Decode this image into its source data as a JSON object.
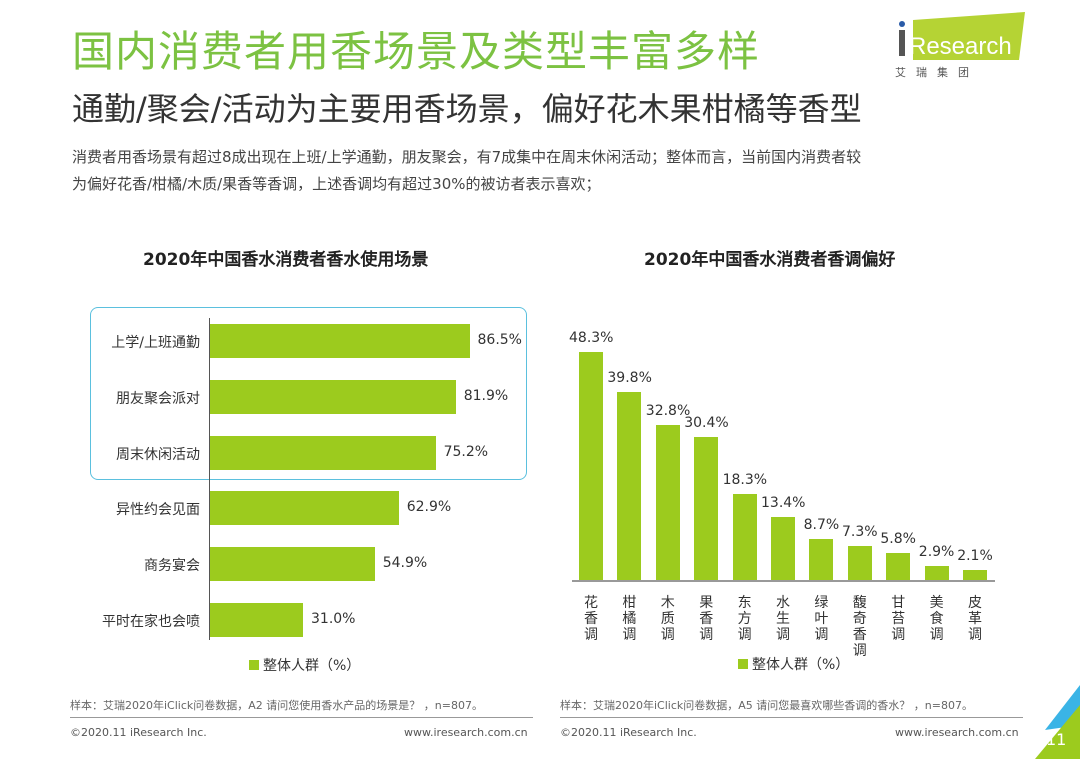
{
  "header": {
    "title": "国内消费者用香场景及类型丰富多样",
    "subtitle": "通勤/聚会/活动为主要用香场景，偏好花木果柑橘等香型",
    "description": [
      "消费者用香场景有超过8成出现在上班/上学通勤，朋友聚会，有7成集中在周末休闲活动；整体而言，当前国内消费者较",
      "为偏好花香/柑橘/木质/果香等香调，上述香调均有超过30%的被访者表示喜欢；"
    ]
  },
  "logo": {
    "brand": "iResearch",
    "chinese": "艾 瑞 集 团"
  },
  "colors": {
    "bar": "#9ccb1e",
    "title": "#7cc242",
    "highlight": "#5bc0de"
  },
  "chart_data": [
    {
      "type": "bar",
      "orientation": "horizontal",
      "title": "2020年中国香水消费者香水使用场景",
      "categories": [
        "上学/上班通勤",
        "朋友聚会派对",
        "周末休闲活动",
        "异性约会见面",
        "商务宴会",
        "平时在家也会喷"
      ],
      "series": [
        {
          "name": "整体人群（%）",
          "values": [
            86.5,
            81.9,
            75.2,
            62.9,
            54.9,
            31.0
          ]
        }
      ],
      "labels": [
        "86.5%",
        "81.9%",
        "75.2%",
        "62.9%",
        "54.9%",
        "31.0%"
      ],
      "highlighted": [
        "上学/上班通勤",
        "朋友聚会派对",
        "周末休闲活动"
      ],
      "legend": "bottom",
      "note": "样本：艾瑞2020年iClick问卷数据，A2 请问您使用香水产品的场景是？ ，n=807。"
    },
    {
      "type": "bar",
      "orientation": "vertical",
      "title": "2020年中国香水消费者香调偏好",
      "categories": [
        "花香调",
        "柑橘调",
        "木质调",
        "果香调",
        "东方调",
        "水生调",
        "绿叶调",
        "馥奇香调",
        "甘苔调",
        "美食调",
        "皮革调"
      ],
      "series": [
        {
          "name": "整体人群（%）",
          "values": [
            48.3,
            39.8,
            32.8,
            30.4,
            18.3,
            13.4,
            8.7,
            7.3,
            5.8,
            2.9,
            2.1
          ]
        }
      ],
      "labels": [
        "48.3%",
        "39.8%",
        "32.8%",
        "30.4%",
        "18.3%",
        "13.4%",
        "8.7%",
        "7.3%",
        "5.8%",
        "2.9%",
        "2.1%"
      ],
      "legend": "bottom",
      "note": "样本：艾瑞2020年iClick问卷数据，A5 请问您最喜欢哪些香调的香水？ ，n=807。"
    }
  ],
  "footer": {
    "copyright": "©2020.11 iResearch Inc.",
    "url": "www.iresearch.com.cn",
    "page": "11"
  }
}
